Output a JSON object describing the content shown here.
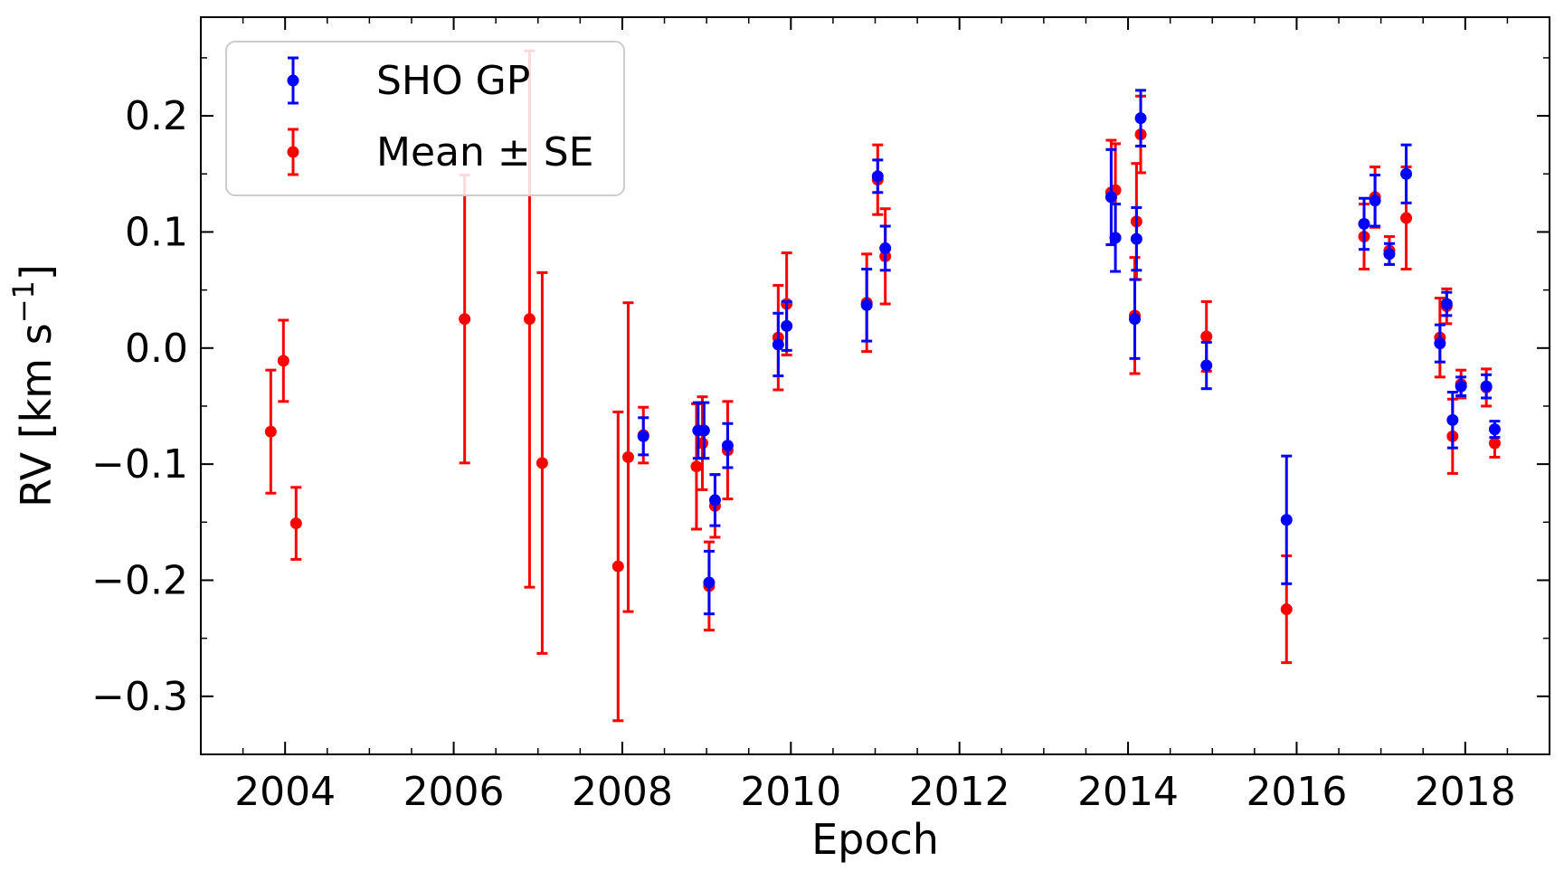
{
  "chart_data": {
    "type": "scatter",
    "title": "",
    "xlabel": "Epoch",
    "ylabel": "RV [km s−1]",
    "ylabel_parts": {
      "main": "RV [km s",
      "sup": "−1",
      "close": "]"
    },
    "xlim": [
      2003.0,
      2019.0
    ],
    "ylim": [
      -0.35,
      0.285
    ],
    "xticks": [
      2004,
      2006,
      2008,
      2010,
      2012,
      2014,
      2016,
      2018
    ],
    "xtick_labels": [
      "2004",
      "2006",
      "2008",
      "2010",
      "2012",
      "2014",
      "2016",
      "2018"
    ],
    "yticks": [
      -0.3,
      -0.2,
      -0.1,
      0.0,
      0.1,
      0.2
    ],
    "ytick_labels": [
      "−0.3",
      "−0.2",
      "−0.1",
      "0.0",
      "0.1",
      "0.2"
    ],
    "x_minor_step": 0.5,
    "y_minor_step": 0.05,
    "grid": false,
    "legend_position": "top-left",
    "series": [
      {
        "name": "SHO GP",
        "color": "#0000ff",
        "points": [
          {
            "x": 2008.25,
            "y": -0.076,
            "err": 0.016
          },
          {
            "x": 2008.9,
            "y": -0.071,
            "err": 0.024
          },
          {
            "x": 2008.97,
            "y": -0.071,
            "err": 0.024
          },
          {
            "x": 2009.03,
            "y": -0.202,
            "err": 0.027
          },
          {
            "x": 2009.1,
            "y": -0.131,
            "err": 0.022
          },
          {
            "x": 2009.25,
            "y": -0.084,
            "err": 0.019
          },
          {
            "x": 2009.85,
            "y": 0.003,
            "err": 0.027
          },
          {
            "x": 2009.95,
            "y": 0.019,
            "err": 0.021
          },
          {
            "x": 2010.9,
            "y": 0.037,
            "err": 0.031
          },
          {
            "x": 2011.03,
            "y": 0.148,
            "err": 0.014
          },
          {
            "x": 2011.12,
            "y": 0.086,
            "err": 0.019
          },
          {
            "x": 2013.8,
            "y": 0.13,
            "err": 0.041
          },
          {
            "x": 2013.85,
            "y": 0.095,
            "err": 0.029
          },
          {
            "x": 2014.08,
            "y": 0.025,
            "err": 0.034
          },
          {
            "x": 2014.1,
            "y": 0.094,
            "err": 0.027
          },
          {
            "x": 2014.15,
            "y": 0.198,
            "err": 0.024
          },
          {
            "x": 2014.93,
            "y": -0.015,
            "err": 0.02
          },
          {
            "x": 2015.88,
            "y": -0.148,
            "err": 0.055
          },
          {
            "x": 2016.8,
            "y": 0.107,
            "err": 0.022
          },
          {
            "x": 2016.93,
            "y": 0.127,
            "err": 0.022
          },
          {
            "x": 2017.1,
            "y": 0.081,
            "err": 0.009
          },
          {
            "x": 2017.3,
            "y": 0.15,
            "err": 0.025
          },
          {
            "x": 2017.7,
            "y": 0.004,
            "err": 0.016
          },
          {
            "x": 2017.78,
            "y": 0.038,
            "err": 0.01
          },
          {
            "x": 2017.85,
            "y": -0.062,
            "err": 0.024
          },
          {
            "x": 2017.95,
            "y": -0.033,
            "err": 0.008
          },
          {
            "x": 2018.25,
            "y": -0.033,
            "err": 0.01
          },
          {
            "x": 2018.35,
            "y": -0.07,
            "err": 0.007
          }
        ]
      },
      {
        "name": "Mean ± SE",
        "color": "#ff0000",
        "points": [
          {
            "x": 2003.83,
            "y": -0.072,
            "err": 0.053
          },
          {
            "x": 2003.98,
            "y": -0.011,
            "err": 0.035
          },
          {
            "x": 2004.13,
            "y": -0.151,
            "err": 0.031
          },
          {
            "x": 2006.13,
            "y": 0.025,
            "err": 0.124
          },
          {
            "x": 2006.9,
            "y": 0.025,
            "err": 0.231
          },
          {
            "x": 2007.05,
            "y": -0.099,
            "err": 0.164
          },
          {
            "x": 2007.95,
            "y": -0.188,
            "err": 0.133
          },
          {
            "x": 2008.07,
            "y": -0.094,
            "err": 0.133
          },
          {
            "x": 2008.25,
            "y": -0.075,
            "err": 0.024
          },
          {
            "x": 2008.88,
            "y": -0.102,
            "err": 0.054
          },
          {
            "x": 2008.95,
            "y": -0.082,
            "err": 0.04
          },
          {
            "x": 2009.03,
            "y": -0.205,
            "err": 0.038
          },
          {
            "x": 2009.1,
            "y": -0.136,
            "err": 0.027
          },
          {
            "x": 2009.25,
            "y": -0.088,
            "err": 0.042
          },
          {
            "x": 2009.85,
            "y": 0.009,
            "err": 0.045
          },
          {
            "x": 2009.95,
            "y": 0.038,
            "err": 0.044
          },
          {
            "x": 2010.9,
            "y": 0.039,
            "err": 0.042
          },
          {
            "x": 2011.03,
            "y": 0.145,
            "err": 0.03
          },
          {
            "x": 2011.12,
            "y": 0.079,
            "err": 0.041
          },
          {
            "x": 2013.8,
            "y": 0.134,
            "err": 0.045
          },
          {
            "x": 2013.85,
            "y": 0.136,
            "err": 0.04
          },
          {
            "x": 2014.08,
            "y": 0.028,
            "err": 0.05
          },
          {
            "x": 2014.1,
            "y": 0.109,
            "err": 0.05
          },
          {
            "x": 2014.15,
            "y": 0.184,
            "err": 0.033
          },
          {
            "x": 2014.93,
            "y": 0.01,
            "err": 0.03
          },
          {
            "x": 2015.88,
            "y": -0.225,
            "err": 0.046
          },
          {
            "x": 2016.8,
            "y": 0.096,
            "err": 0.028
          },
          {
            "x": 2016.93,
            "y": 0.13,
            "err": 0.026
          },
          {
            "x": 2017.1,
            "y": 0.084,
            "err": 0.012
          },
          {
            "x": 2017.3,
            "y": 0.112,
            "err": 0.044
          },
          {
            "x": 2017.7,
            "y": 0.009,
            "err": 0.034
          },
          {
            "x": 2017.78,
            "y": 0.036,
            "err": 0.015
          },
          {
            "x": 2017.85,
            "y": -0.076,
            "err": 0.032
          },
          {
            "x": 2017.95,
            "y": -0.031,
            "err": 0.012
          },
          {
            "x": 2018.25,
            "y": -0.034,
            "err": 0.016
          },
          {
            "x": 2018.35,
            "y": -0.082,
            "err": 0.012
          }
        ]
      }
    ]
  }
}
